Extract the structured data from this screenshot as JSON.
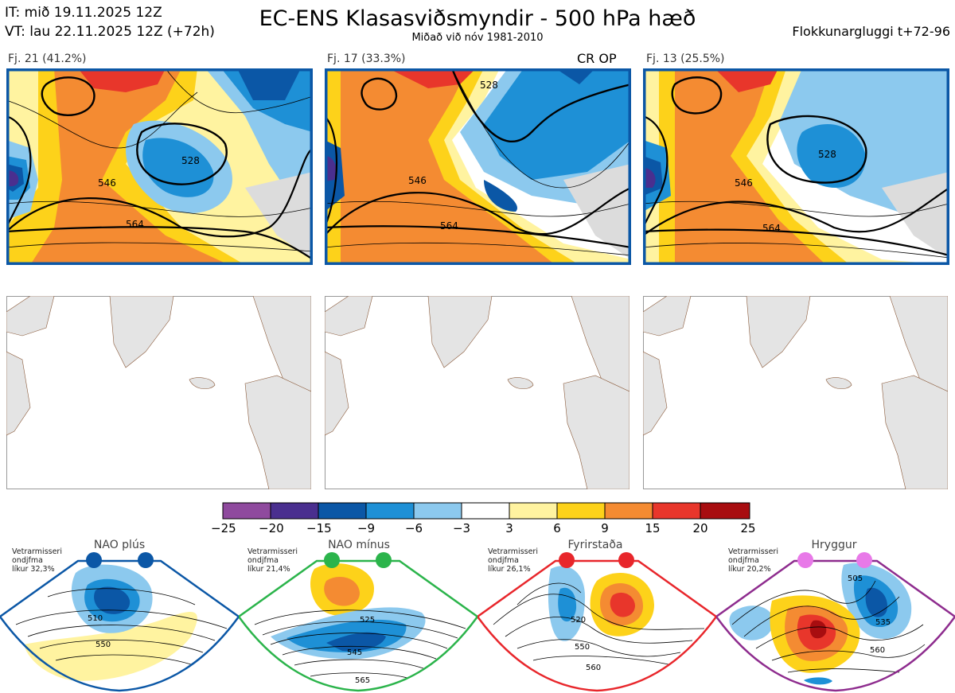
{
  "header": {
    "it": "IT: mið 19.11.2025 12Z",
    "vt": "VT: lau 22.11.2025 12Z  (+72h)",
    "title": "EC-ENS Klasasviðsmyndir - 500 hPa hæð",
    "subtitle": "Miðað við nóv 1981-2010",
    "window": "Flokkunargluggi t+72-96"
  },
  "clusters": [
    {
      "label": "Fj. 21 (41.2%)",
      "op": ""
    },
    {
      "label": "Fj. 17 (33.3%)",
      "op": "CR OP"
    },
    {
      "label": "Fj. 13 (25.5%)",
      "op": ""
    }
  ],
  "contour_labels": [
    "528",
    "546",
    "564"
  ],
  "colorbar": {
    "ticks": [
      "−25",
      "−20",
      "−15",
      "−9",
      "−6",
      "−3",
      "3",
      "6",
      "9",
      "15",
      "20",
      "25"
    ],
    "colors": [
      "#8f4a9e",
      "#4a2f8f",
      "#0b57a6",
      "#1e90d6",
      "#8cc9ee",
      "#ffffff",
      "#fff3a0",
      "#fdd21a",
      "#f48b32",
      "#e8362b",
      "#a80d10"
    ]
  },
  "regimes": [
    {
      "name": "NAO plús",
      "note": [
        "Vetrarmisseri",
        "ondjfma",
        "líkur 32,3%"
      ],
      "color": "#0b57a6",
      "labels": [
        "510",
        "550"
      ]
    },
    {
      "name": "NAO mínus",
      "note": [
        "Vetrarmisseri",
        "ondjfma",
        "líkur 21,4%"
      ],
      "color": "#2bb44b",
      "labels": [
        "525",
        "545",
        "565"
      ]
    },
    {
      "name": "Fyrirstaða",
      "note": [
        "Vetrarmisseri",
        "ondjfma",
        "líkur 26,1%"
      ],
      "color": "#e8262b",
      "labels": [
        "520",
        "550",
        "560"
      ]
    },
    {
      "name": "Hryggur",
      "note": [
        "Vetrarmisseri",
        "ondjfma",
        "líkur 20,2%"
      ],
      "color": "#e879e8",
      "labels": [
        "505",
        "535",
        "560"
      ]
    }
  ]
}
